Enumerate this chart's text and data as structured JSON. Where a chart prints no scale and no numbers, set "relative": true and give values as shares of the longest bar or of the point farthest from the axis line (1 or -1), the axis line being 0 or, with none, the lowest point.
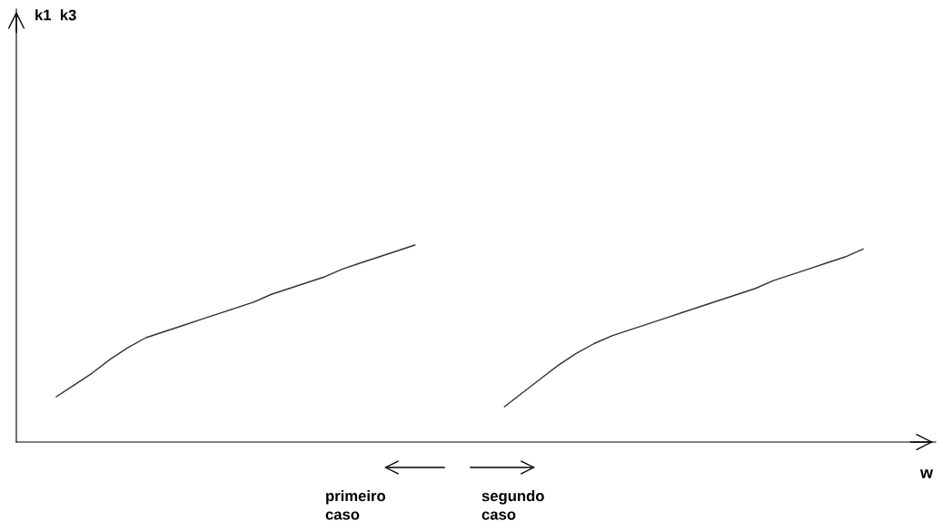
{
  "chart_data": {
    "type": "line",
    "relative": true,
    "xlabel": "w",
    "categories": [
      null,
      null,
      null,
      null,
      null,
      null,
      null,
      null,
      null,
      null,
      null,
      null,
      null,
      null,
      null,
      null,
      null,
      null,
      null,
      null,
      null,
      null,
      null,
      null,
      null,
      null,
      null,
      null,
      null,
      null,
      null,
      null,
      null,
      null,
      null,
      null,
      null,
      null,
      null,
      null,
      null,
      null,
      null,
      null,
      null,
      null
    ],
    "series": [
      {
        "color": "#333333",
        "values": [
          0.23,
          0.29,
          0.35,
          0.42,
          0.48,
          0.53,
          0.56,
          0.59,
          0.62,
          0.65,
          0.68,
          0.71,
          0.75,
          0.78,
          0.81,
          0.84,
          0.88,
          0.91,
          0.94,
          0.97,
          1.0,
          null,
          null,
          null,
          null,
          null,
          null,
          null,
          null,
          null,
          null,
          null,
          null,
          null,
          null,
          null,
          null,
          null,
          null,
          null,
          null,
          null,
          null,
          null,
          null,
          null
        ]
      },
      {
        "color": "#333333",
        "values": [
          null,
          null,
          null,
          null,
          null,
          null,
          null,
          null,
          null,
          null,
          null,
          null,
          null,
          null,
          null,
          null,
          null,
          null,
          null,
          null,
          null,
          null,
          null,
          null,
          null,
          0.18,
          0.25,
          0.32,
          0.39,
          0.45,
          0.5,
          0.54,
          0.57,
          0.6,
          0.63,
          0.66,
          0.69,
          0.72,
          0.75,
          0.78,
          0.82,
          0.85,
          0.88,
          0.91,
          0.94,
          0.98
        ]
      }
    ],
    "annotations": [
      "k1  k3",
      "primeiro\ncaso",
      "segundo\ncaso"
    ]
  }
}
